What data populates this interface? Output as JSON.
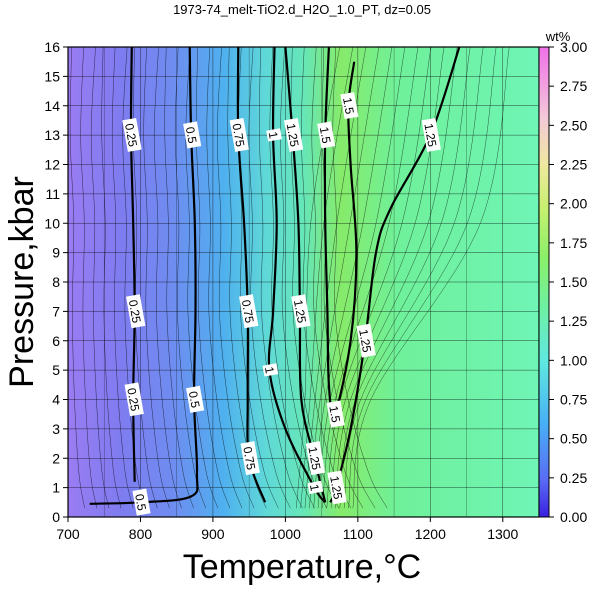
{
  "chart_data": {
    "type": "contour",
    "title": "1973-74_melt-TiO2.d_H2O_1.0_PT, dz=0.05",
    "xlabel": "Temperature,°C",
    "ylabel": "Pressure,kbar",
    "xlim": [
      700,
      1350
    ],
    "ylim": [
      0,
      16
    ],
    "xticks": [
      "700",
      "800",
      "900",
      "1000",
      "1100",
      "1200",
      "1300"
    ],
    "yticks": [
      "0",
      "1",
      "2",
      "3",
      "4",
      "5",
      "6",
      "7",
      "8",
      "9",
      "10",
      "11",
      "12",
      "13",
      "14",
      "15",
      "16"
    ],
    "grid": true,
    "colorbar": {
      "title": "wt%",
      "range": [
        0,
        3
      ],
      "ticks": [
        "0.00",
        "0.25",
        "0.50",
        "0.75",
        "1.00",
        "1.25",
        "1.50",
        "1.75",
        "2.00",
        "2.25",
        "2.50",
        "2.75",
        "3.00"
      ]
    },
    "major_contours": [
      {
        "level": "0.25",
        "label": "0.25",
        "points": [
          [
            788,
            16
          ],
          [
            787,
            13
          ],
          [
            790,
            10
          ],
          [
            792,
            7
          ],
          [
            790,
            4
          ],
          [
            792,
            1.2
          ]
        ]
      },
      {
        "level": "0.5",
        "label": "0.5",
        "points": [
          [
            868,
            16
          ],
          [
            870,
            13
          ],
          [
            875,
            10
          ],
          [
            876,
            7
          ],
          [
            874,
            4
          ],
          [
            878,
            1.5
          ],
          [
            870,
            0.7
          ],
          [
            800,
            0.5
          ],
          [
            730,
            0.45
          ]
        ]
      },
      {
        "level": "0.75",
        "label": "0.75",
        "points": [
          [
            935,
            16
          ],
          [
            935,
            13
          ],
          [
            943,
            10
          ],
          [
            948,
            7
          ],
          [
            948,
            4
          ],
          [
            950,
            2
          ],
          [
            972,
            0.5
          ]
        ]
      },
      {
        "level": "1",
        "label": "1",
        "points": [
          [
            985,
            16
          ],
          [
            983,
            13
          ],
          [
            988,
            10
          ],
          [
            983,
            7
          ],
          [
            978,
            5
          ],
          [
            1000,
            3
          ],
          [
            1040,
            1
          ],
          [
            1055,
            0.5
          ]
        ]
      },
      {
        "level": "1.25",
        "label": "1.25",
        "points": [
          [
            1000,
            16
          ],
          [
            1010,
            13
          ],
          [
            1018,
            10
          ],
          [
            1020,
            7
          ],
          [
            1022,
            4
          ],
          [
            1040,
            2
          ],
          [
            1055,
            0.5
          ]
        ]
      },
      {
        "level": "1.5",
        "label": "1.5",
        "points": [
          [
            1060,
            16
          ],
          [
            1055,
            13
          ],
          [
            1055,
            10
          ],
          [
            1058,
            7
          ],
          [
            1060,
            4.5
          ],
          [
            1068,
            3.5
          ],
          [
            1090,
            6
          ],
          [
            1098,
            9
          ],
          [
            1090,
            12
          ],
          [
            1087,
            14
          ],
          [
            1095,
            15.5
          ]
        ]
      },
      {
        "level": "1.25",
        "label": "1.25",
        "points": [
          [
            1240,
            16
          ],
          [
            1200,
            13
          ],
          [
            1145,
            10.5
          ],
          [
            1125,
            9
          ],
          [
            1110,
            6
          ],
          [
            1090,
            3
          ],
          [
            1070,
            1
          ],
          [
            1062,
            0.5
          ]
        ]
      }
    ]
  }
}
